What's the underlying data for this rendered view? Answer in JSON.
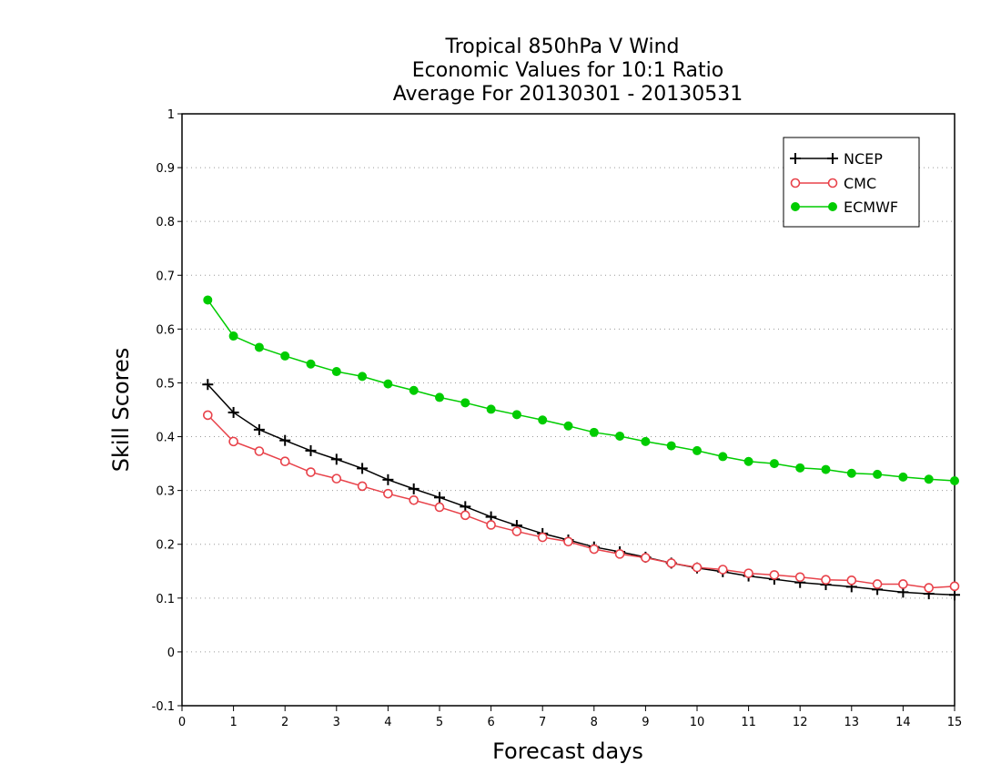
{
  "chart_data": {
    "type": "line",
    "title_lines": [
      "Tropical 850hPa V Wind",
      "Economic Values for 10:1 Ratio",
      "Average For 20130301 - 20130531"
    ],
    "xlabel": "Forecast days",
    "ylabel": "Skill Scores",
    "xlim": [
      0,
      15
    ],
    "ylim": [
      -0.1,
      1
    ],
    "xticks": [
      "0",
      "1",
      "2",
      "3",
      "4",
      "5",
      "6",
      "7",
      "8",
      "9",
      "10",
      "11",
      "12",
      "13",
      "14",
      "15"
    ],
    "yticks": [
      "-0.1",
      "0",
      "0.1",
      "0.2",
      "0.3",
      "0.4",
      "0.5",
      "0.6",
      "0.7",
      "0.8",
      "0.9",
      "1"
    ],
    "grid": "horizontal dotted",
    "legend_position": "top-right",
    "x": [
      0.5,
      1,
      1.5,
      2,
      2.5,
      3,
      3.5,
      4,
      4.5,
      5,
      5.5,
      6,
      6.5,
      7,
      7.5,
      8,
      8.5,
      9,
      9.5,
      10,
      10.5,
      11,
      11.5,
      12,
      12.5,
      13,
      13.5,
      14,
      14.5,
      15
    ],
    "series": [
      {
        "name": "NCEP",
        "color": "#000000",
        "marker": "plus",
        "values": [
          0.497,
          0.445,
          0.413,
          0.393,
          0.374,
          0.358,
          0.341,
          0.32,
          0.303,
          0.287,
          0.27,
          0.251,
          0.235,
          0.22,
          0.208,
          0.195,
          0.186,
          0.176,
          0.165,
          0.156,
          0.149,
          0.141,
          0.135,
          0.129,
          0.125,
          0.121,
          0.116,
          0.111,
          0.108,
          0.106
        ]
      },
      {
        "name": "CMC",
        "color": "#e8424a",
        "marker": "open-circle",
        "values": [
          0.44,
          0.391,
          0.373,
          0.354,
          0.334,
          0.322,
          0.308,
          0.294,
          0.282,
          0.269,
          0.254,
          0.236,
          0.224,
          0.213,
          0.205,
          0.191,
          0.182,
          0.175,
          0.165,
          0.157,
          0.153,
          0.146,
          0.143,
          0.139,
          0.134,
          0.133,
          0.126,
          0.126,
          0.119,
          0.122
        ]
      },
      {
        "name": "ECMWF",
        "color": "#00cc00",
        "marker": "filled-circle",
        "values": [
          0.654,
          0.587,
          0.566,
          0.55,
          0.535,
          0.521,
          0.512,
          0.498,
          0.486,
          0.473,
          0.463,
          0.451,
          0.441,
          0.431,
          0.42,
          0.408,
          0.401,
          0.391,
          0.383,
          0.374,
          0.363,
          0.354,
          0.35,
          0.342,
          0.339,
          0.332,
          0.33,
          0.325,
          0.321,
          0.318
        ]
      }
    ]
  }
}
